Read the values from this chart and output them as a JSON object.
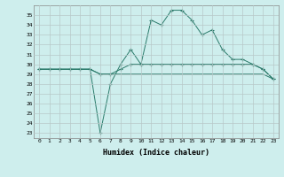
{
  "xlabel": "Humidex (Indice chaleur)",
  "ylabel": "",
  "x": [
    0,
    1,
    2,
    3,
    4,
    5,
    6,
    7,
    8,
    9,
    10,
    11,
    12,
    13,
    14,
    15,
    16,
    17,
    18,
    19,
    20,
    21,
    22,
    23
  ],
  "line1_y": [
    29.5,
    29.5,
    29.5,
    29.5,
    29.5,
    29.5,
    29.0,
    29.0,
    29.5,
    30.0,
    30.0,
    30.0,
    30.0,
    30.0,
    30.0,
    30.0,
    30.0,
    30.0,
    30.0,
    30.0,
    30.0,
    30.0,
    29.5,
    28.5
  ],
  "line2_y": [
    29.5,
    29.5,
    29.5,
    29.5,
    29.5,
    29.5,
    23.0,
    28.0,
    30.0,
    31.5,
    30.0,
    34.5,
    34.0,
    35.5,
    35.5,
    34.5,
    33.0,
    33.5,
    31.5,
    30.5,
    30.5,
    30.0,
    29.5,
    28.5
  ],
  "line3_y": [
    29.5,
    29.5,
    29.5,
    29.5,
    29.5,
    29.5,
    29.0,
    29.0,
    29.0,
    29.0,
    29.0,
    29.0,
    29.0,
    29.0,
    29.0,
    29.0,
    29.0,
    29.0,
    29.0,
    29.0,
    29.0,
    29.0,
    29.0,
    28.5
  ],
  "line_color": "#2a7a6a",
  "bg_color": "#ceeeed",
  "grid_color": "#b8c8c8",
  "ylim_min": 22.5,
  "ylim_max": 36.0,
  "yticks": [
    23,
    24,
    25,
    26,
    27,
    28,
    29,
    30,
    31,
    32,
    33,
    34,
    35
  ],
  "xticks": [
    0,
    1,
    2,
    3,
    4,
    5,
    6,
    7,
    8,
    9,
    10,
    11,
    12,
    13,
    14,
    15,
    16,
    17,
    18,
    19,
    20,
    21,
    22,
    23
  ],
  "marker": "+",
  "marker_size": 2.5,
  "lw": 0.7
}
